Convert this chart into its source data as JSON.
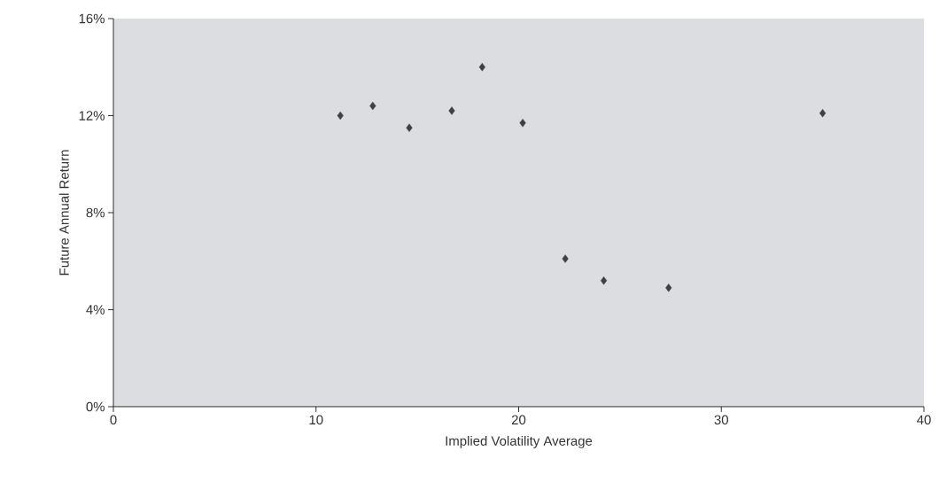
{
  "chart_data": {
    "type": "scatter",
    "xlabel": "Implied Volatility Average",
    "ylabel": "Future Annual Return",
    "x": [
      11.2,
      12.8,
      14.6,
      16.7,
      18.2,
      20.2,
      22.3,
      24.2,
      27.4,
      35.0
    ],
    "values": [
      12.0,
      12.4,
      11.5,
      12.2,
      14.0,
      11.7,
      6.1,
      5.2,
      4.9,
      12.1
    ],
    "color": "#404040",
    "marker": "diamond",
    "xlim": [
      0,
      40
    ],
    "ylim": [
      0,
      16
    ],
    "xticks": [
      0,
      10,
      20,
      30,
      40
    ],
    "yticks": [
      {
        "value": 0,
        "label": "0%"
      },
      {
        "value": 4,
        "label": "4%"
      },
      {
        "value": 8,
        "label": "8%"
      },
      {
        "value": 12,
        "label": "12%"
      },
      {
        "value": 16,
        "label": "16%"
      }
    ]
  }
}
